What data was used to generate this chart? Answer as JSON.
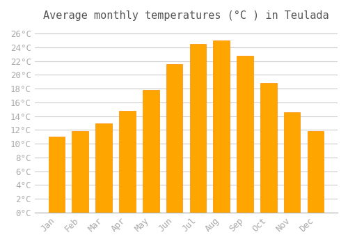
{
  "title": "Average monthly temperatures (°C ) in Teulada",
  "months": [
    "Jan",
    "Feb",
    "Mar",
    "Apr",
    "May",
    "Jun",
    "Jul",
    "Aug",
    "Sep",
    "Oct",
    "Nov",
    "Dec"
  ],
  "temperatures": [
    11.0,
    11.8,
    13.0,
    14.8,
    17.8,
    21.5,
    24.5,
    25.0,
    22.8,
    18.8,
    14.6,
    11.8
  ],
  "bar_color": "#FFA500",
  "bar_edge_color": "#FF8C00",
  "ylim": [
    0,
    27
  ],
  "ytick_step": 2,
  "background_color": "#FFFFFF",
  "plot_bg_color": "#FFFFFF",
  "grid_color": "#CCCCCC",
  "title_fontsize": 11,
  "tick_fontsize": 9,
  "font_family": "monospace"
}
